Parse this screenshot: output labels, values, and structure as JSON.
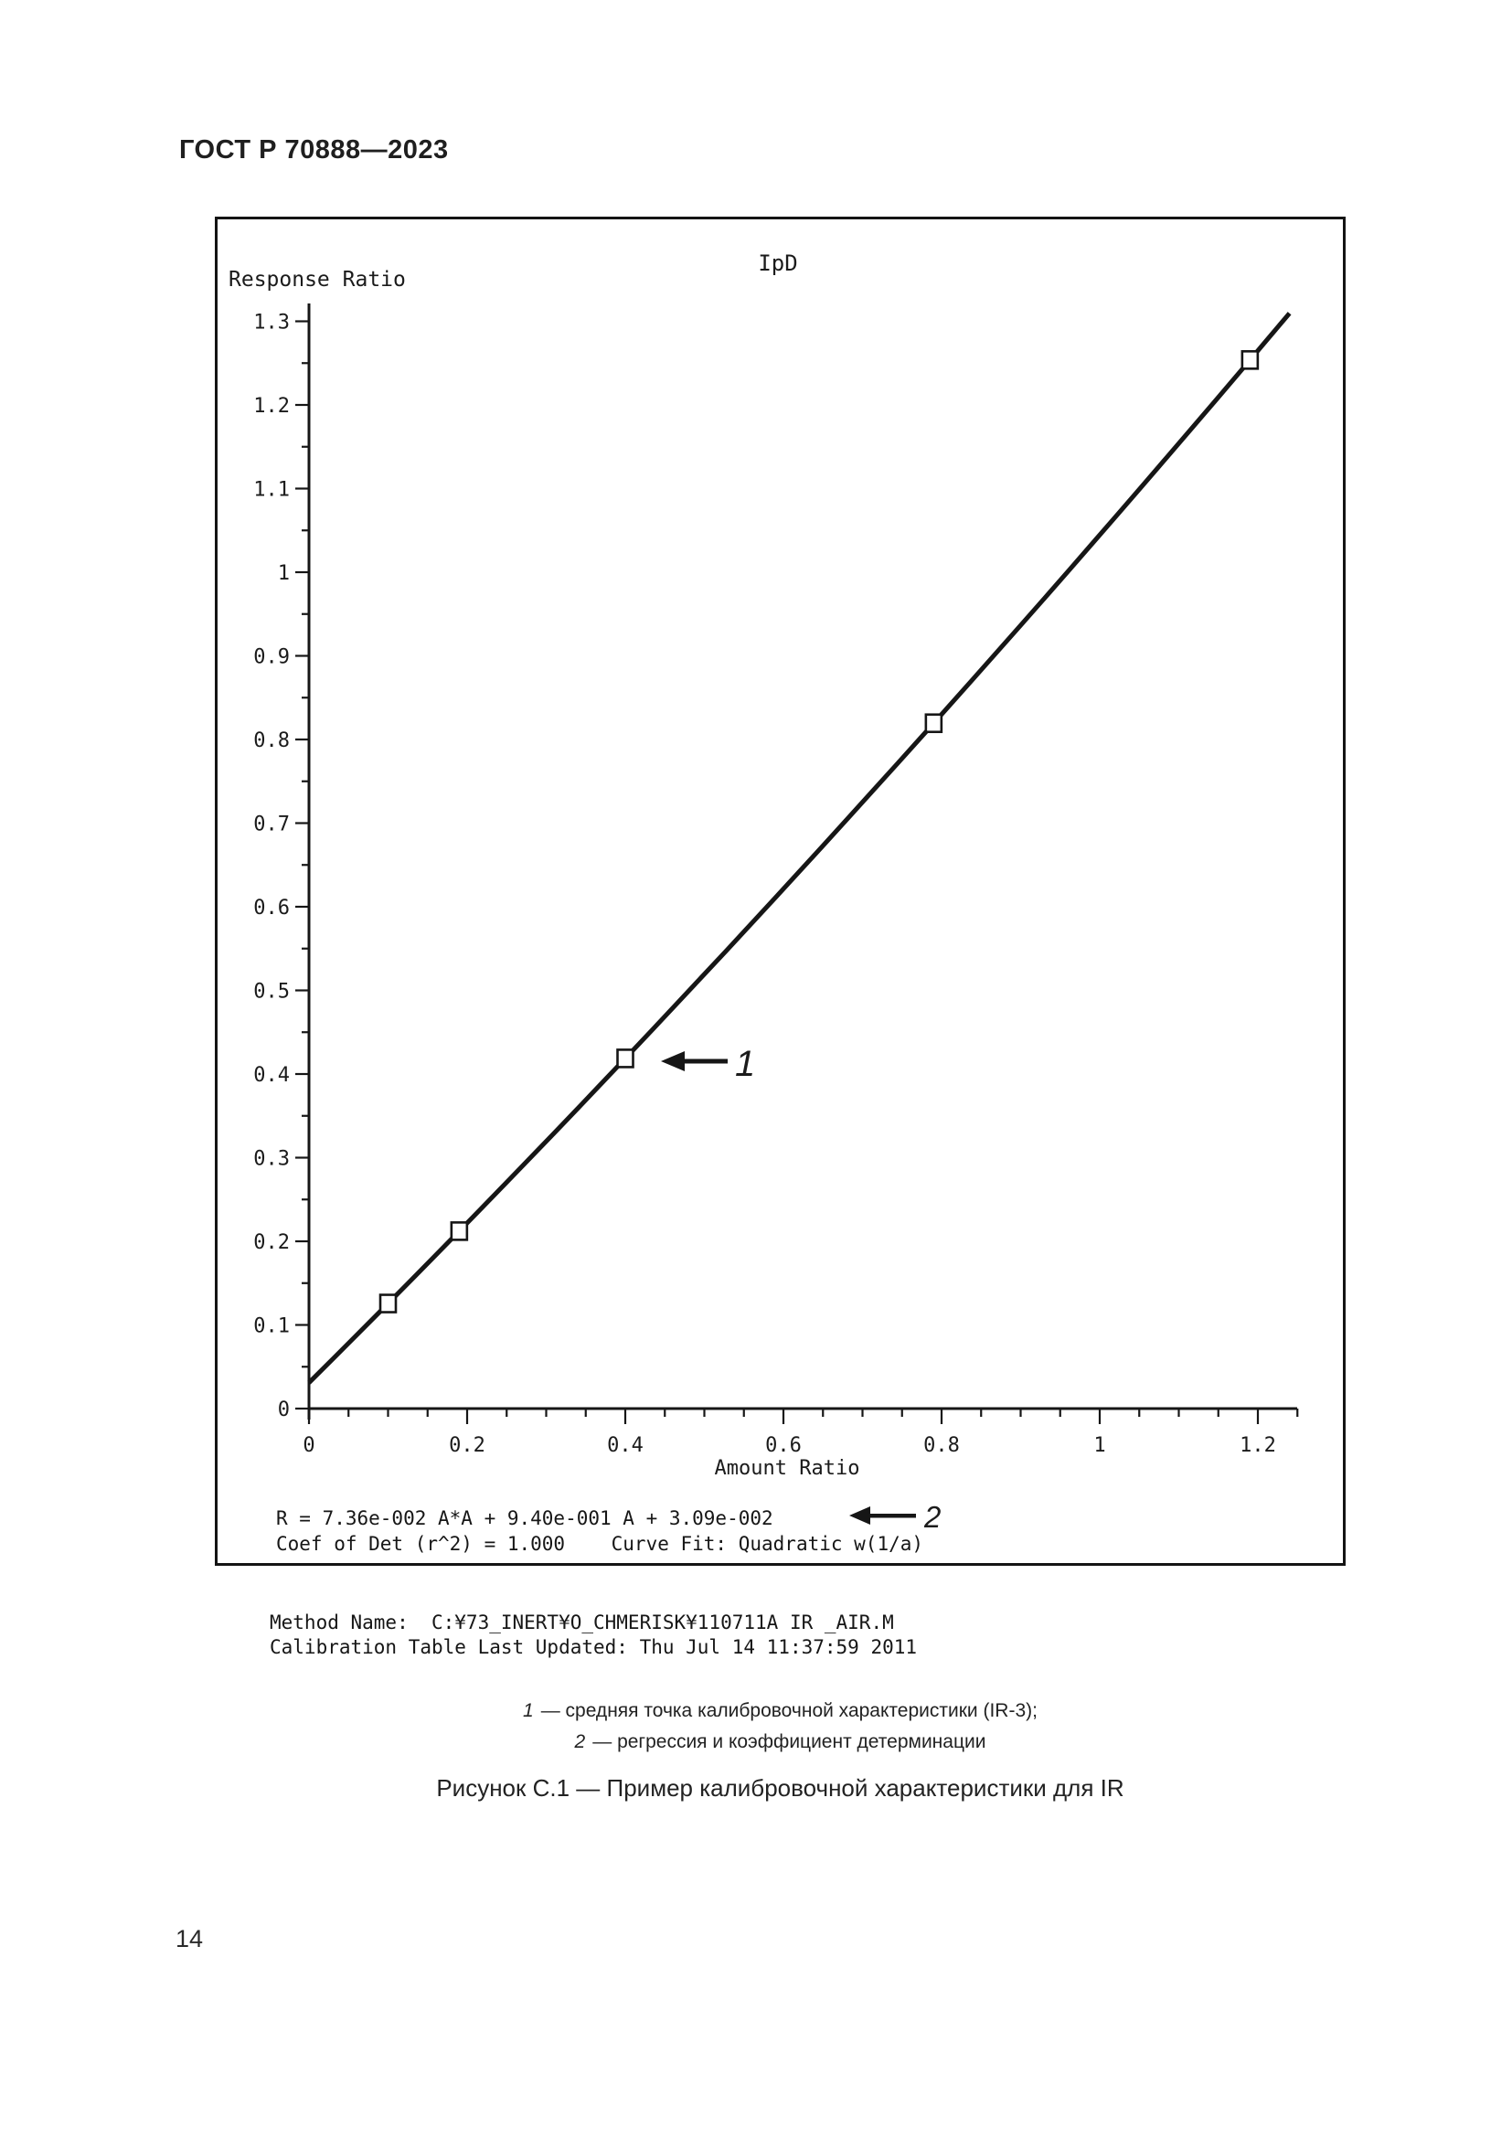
{
  "page": {
    "header": "ГОСТ Р 70888—2023",
    "page_number": "14"
  },
  "figure": {
    "method_line1": "Method Name:  C:¥73_INERT¥O_CHMERISK¥110711A IR _AIR.M",
    "method_line2": "Calibration Table Last Updated: Thu Jul 14 11:37:59 2011",
    "legend": [
      {
        "num": "1",
        "text": "— средняя точка калибровочной характеристики (IR-3);"
      },
      {
        "num": "2",
        "text": "— регрессия и коэффициент детерминации"
      }
    ],
    "caption": "Рисунок С.1 — Пример калибровочной характеристики для IR"
  },
  "chart_data": {
    "type": "scatter",
    "title": "IpD",
    "xlabel": "Amount Ratio",
    "ylabel": "Response Ratio",
    "x_axis": {
      "min": 0,
      "max": 1.25,
      "major_tick_step": 0.2,
      "minor_tick_step": 0.05,
      "tick_labels": [
        "0",
        "0.2",
        "0.4",
        "0.6",
        "0.8",
        "1",
        "1.2"
      ]
    },
    "y_axis": {
      "min": 0,
      "max": 1.3,
      "major_tick_step": 0.1,
      "minor_tick_step": 0.05,
      "tick_labels": [
        "0",
        "0.1",
        "0.2",
        "0.3",
        "0.4",
        "0.5",
        "0.6",
        "0.7",
        "0.8",
        "0.9",
        "1",
        "1.1",
        "1.2",
        "1.3"
      ]
    },
    "points": {
      "marker": "open-square",
      "amount_ratio": [
        0.1,
        0.19,
        0.4,
        0.79,
        1.19
      ],
      "response_ratio": [
        0.12,
        0.22,
        0.41,
        0.82,
        1.25
      ]
    },
    "fit": {
      "equation": "R = 7.36e-002 A*A + 9.40e-001 A + 3.09e-002",
      "stats_line": "Coef of Det (r^2) = 1.000    Curve Fit: Quadratic w(1/a)",
      "coefficients": {
        "a2": 0.0736,
        "a1": 0.94,
        "a0": 0.0309
      },
      "curve_type": "Quadratic w(1/a)",
      "coef_of_det": "1.000",
      "range": [
        0,
        1.24
      ]
    },
    "annotations": [
      {
        "label": "1"
      },
      {
        "label": "2"
      }
    ],
    "legend_position": "none",
    "grid": false
  }
}
